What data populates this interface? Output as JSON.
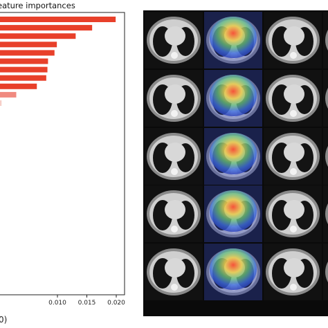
{
  "chart_data": {
    "type": "bar",
    "orientation": "horizontal",
    "title": "eature importances",
    "xticks": [
      "0.010",
      "0.015",
      "0.020"
    ],
    "xlim": [
      0.0,
      0.021
    ],
    "bar_color": "#e8402a",
    "values": [
      0.0199,
      0.0159,
      0.0131,
      0.0099,
      0.0095,
      0.0084,
      0.0083,
      0.0081,
      0.0065,
      0.003,
      0.0005
    ],
    "bar_colors": [
      "#e8402a",
      "#e8402a",
      "#e8402a",
      "#e8402a",
      "#e8402a",
      "#e8402a",
      "#e8402a",
      "#e8402a",
      "#e8402a",
      "#f08a80",
      "#f6cfc8"
    ],
    "grid": false,
    "legend": "none"
  },
  "footer_text": "0)",
  "images": {
    "rows": 5,
    "cols": 4,
    "heatmap_columns": [
      1
    ],
    "partial_heatmap_column": 3
  }
}
